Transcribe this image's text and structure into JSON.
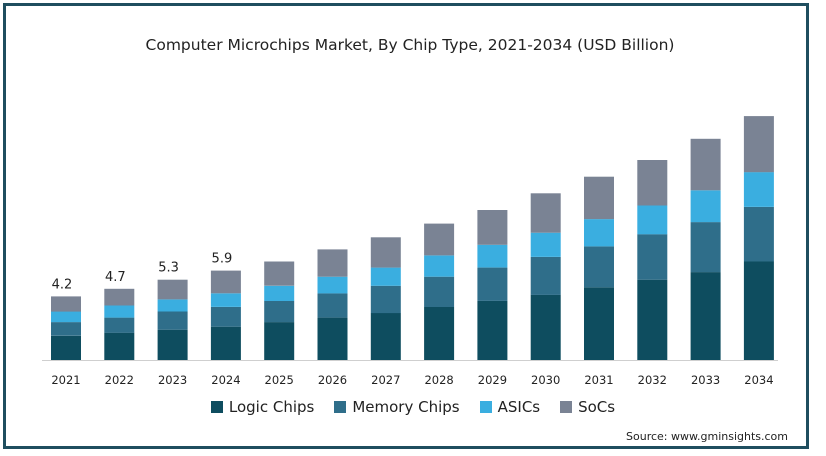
{
  "chart_data": {
    "type": "bar",
    "stacked": true,
    "title": "Computer Microchips Market, By Chip Type,  2021-2034 (USD Billion)",
    "categories": [
      "2021",
      "2022",
      "2023",
      "2024",
      "2025",
      "2026",
      "2027",
      "2028",
      "2029",
      "2030",
      "2031",
      "2032",
      "2033",
      "2034"
    ],
    "series": [
      {
        "name": "Logic Chips",
        "color": "#0e4d5f",
        "values": [
          1.6,
          1.8,
          2.0,
          2.2,
          2.5,
          2.8,
          3.1,
          3.5,
          3.9,
          4.3,
          4.8,
          5.3,
          5.8,
          6.5
        ]
      },
      {
        "name": "Memory Chips",
        "color": "#2f6e8a",
        "values": [
          0.9,
          1.0,
          1.2,
          1.3,
          1.4,
          1.6,
          1.8,
          2.0,
          2.2,
          2.5,
          2.7,
          3.0,
          3.3,
          3.6
        ]
      },
      {
        "name": "ASICs",
        "color": "#3aaee0",
        "values": [
          0.7,
          0.8,
          0.8,
          0.9,
          1.0,
          1.1,
          1.2,
          1.4,
          1.5,
          1.6,
          1.8,
          1.9,
          2.1,
          2.3
        ]
      },
      {
        "name": "SoCs",
        "color": "#7a8394",
        "values": [
          1.0,
          1.1,
          1.3,
          1.5,
          1.6,
          1.8,
          2.0,
          2.1,
          2.3,
          2.6,
          2.8,
          3.0,
          3.4,
          3.7
        ]
      }
    ],
    "data_labels": {
      "2021": "4.2",
      "2022": "4.7",
      "2023": "5.3",
      "2024": "5.9"
    },
    "ylim": [
      0,
      16.5
    ],
    "grid": false,
    "legend_position": "bottom"
  },
  "source": "Source: www.gminsights.com"
}
